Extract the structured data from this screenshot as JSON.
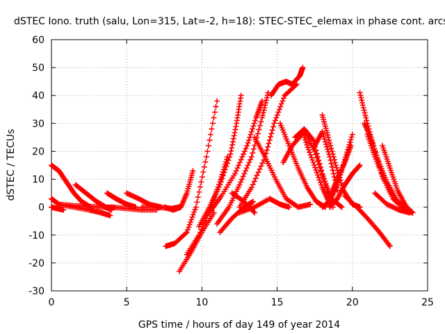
{
  "chart_data": {
    "type": "scatter",
    "title": "dSTEC Iono. truth (salu, Lon=315, Lat=-2, h=18): STEC-STEC_elemax in phase cont. arcs",
    "xlabel": "GPS time / hours of day 149 of year 2014",
    "ylabel": "dSTEC  / TECUs",
    "xlim": [
      0,
      25
    ],
    "ylim": [
      -30,
      60
    ],
    "xticks": [
      0,
      5,
      10,
      15,
      20,
      25
    ],
    "yticks": [
      -30,
      -20,
      -10,
      0,
      10,
      20,
      30,
      40,
      50,
      60
    ],
    "grid": true,
    "marker": "+",
    "color": "#ff0000",
    "series": [
      {
        "x": [
          0.0,
          0.5,
          1.0,
          1.5,
          2.0,
          2.6
        ],
        "y": [
          15.0,
          13.0,
          9.0,
          5.0,
          2.0,
          0.0
        ]
      },
      {
        "x": [
          0.0,
          0.5,
          1.5,
          2.5,
          3.3,
          3.9
        ],
        "y": [
          3.0,
          1.0,
          0.0,
          -1.0,
          -2.0,
          -3.0
        ]
      },
      {
        "x": [
          0.0,
          0.4,
          0.8
        ],
        "y": [
          0.0,
          -0.5,
          -1.0
        ]
      },
      {
        "x": [
          0.5,
          1.5,
          2.5,
          3.5,
          4.2
        ],
        "y": [
          1.0,
          0.5,
          0.2,
          0.0,
          -0.2
        ]
      },
      {
        "x": [
          1.6,
          2.3,
          3.0,
          3.6,
          4.0
        ],
        "y": [
          8.0,
          5.0,
          2.0,
          0.0,
          -1.0
        ]
      },
      {
        "x": [
          3.7,
          4.3,
          5.0,
          5.6
        ],
        "y": [
          5.0,
          3.0,
          1.0,
          0.0
        ]
      },
      {
        "x": [
          4.0,
          5.0,
          6.0,
          7.0
        ],
        "y": [
          0.0,
          -0.5,
          -1.0,
          -1.0
        ]
      },
      {
        "x": [
          5.0,
          5.8,
          6.5,
          7.3
        ],
        "y": [
          5.0,
          3.0,
          1.0,
          0.0
        ]
      },
      {
        "x": [
          6.0,
          7.0,
          8.0,
          8.5
        ],
        "y": [
          0.0,
          0.0,
          -0.5,
          0.0
        ]
      },
      {
        "x": [
          7.5,
          8.1,
          8.6,
          9.0,
          9.4
        ],
        "y": [
          0.0,
          -1.0,
          0.0,
          5.0,
          13.0
        ]
      },
      {
        "x": [
          7.6,
          8.2,
          9.0,
          9.6,
          10.3,
          11.0
        ],
        "y": [
          -14.0,
          -13.0,
          -9.0,
          0.0,
          18.0,
          38.0
        ]
      },
      {
        "x": [
          8.5,
          9.3,
          10.0,
          10.8
        ],
        "y": [
          -23.0,
          -16.0,
          -9.0,
          -2.0
        ]
      },
      {
        "x": [
          9.0,
          9.8,
          10.6,
          11.2,
          11.7
        ],
        "y": [
          -17.0,
          -10.0,
          0.0,
          9.0,
          18.0
        ]
      },
      {
        "x": [
          9.8,
          10.5,
          11.2,
          11.9,
          12.3,
          12.6
        ],
        "y": [
          -7.0,
          0.0,
          8.0,
          19.0,
          30.0,
          40.0
        ]
      },
      {
        "x": [
          10.5,
          11.3,
          12.2,
          13.0,
          13.6,
          14.0
        ],
        "y": [
          -2.0,
          4.0,
          12.0,
          22.0,
          32.0,
          38.0
        ]
      },
      {
        "x": [
          11.0,
          11.8,
          12.5,
          13.3,
          14.0,
          14.4
        ],
        "y": [
          -6.0,
          0.0,
          8.0,
          18.0,
          32.0,
          41.0
        ]
      },
      {
        "x": [
          11.2,
          12.0,
          12.8,
          13.4
        ],
        "y": [
          -9.0,
          -4.0,
          0.0,
          2.0
        ]
      },
      {
        "x": [
          12.0,
          12.8,
          13.5
        ],
        "y": [
          5.0,
          2.0,
          -2.0
        ]
      },
      {
        "x": [
          12.5,
          13.3,
          14.2,
          14.8,
          15.5,
          16.3
        ],
        "y": [
          0.0,
          7.0,
          18.0,
          30.0,
          40.0,
          44.0
        ]
      },
      {
        "x": [
          14.6,
          15.1,
          15.6,
          16.0,
          16.5,
          16.7
        ],
        "y": [
          40.0,
          44.0,
          45.0,
          44.0,
          47.0,
          50.0
        ]
      },
      {
        "x": [
          13.5,
          14.2,
          14.9,
          15.6,
          16.4,
          17.2
        ],
        "y": [
          25.0,
          18.0,
          10.0,
          3.0,
          0.0,
          1.0
        ]
      },
      {
        "x": [
          12.5,
          13.5,
          14.5,
          15.2,
          15.8
        ],
        "y": [
          -2.0,
          0.0,
          3.0,
          1.0,
          0.0
        ]
      },
      {
        "x": [
          15.2,
          15.8,
          16.4,
          17.0,
          17.6,
          18.2
        ],
        "y": [
          30.0,
          22.0,
          14.0,
          7.0,
          2.0,
          0.0
        ]
      },
      {
        "x": [
          15.4,
          16.0,
          16.8,
          17.5,
          18.2,
          18.7
        ],
        "y": [
          16.0,
          22.0,
          27.0,
          20.0,
          8.0,
          0.0
        ]
      },
      {
        "x": [
          16.2,
          16.8,
          17.4,
          18.0,
          18.6,
          19.3
        ],
        "y": [
          25.0,
          28.0,
          24.0,
          12.0,
          3.0,
          0.0
        ]
      },
      {
        "x": [
          16.8,
          17.4,
          18.0,
          18.5
        ],
        "y": [
          25.0,
          16.0,
          7.0,
          1.0
        ]
      },
      {
        "x": [
          17.5,
          18.0,
          18.5,
          19.0
        ],
        "y": [
          22.0,
          27.0,
          18.0,
          6.0
        ]
      },
      {
        "x": [
          18.0,
          18.4,
          18.9,
          19.4,
          20.0,
          20.5
        ],
        "y": [
          33.0,
          25.0,
          15.0,
          6.0,
          1.0,
          0.0
        ]
      },
      {
        "x": [
          18.0,
          18.5,
          19.0,
          19.5,
          20.0
        ],
        "y": [
          0.0,
          2.0,
          8.0,
          17.0,
          26.0
        ]
      },
      {
        "x": [
          18.5,
          19.0,
          19.5,
          20.0,
          20.5
        ],
        "y": [
          0.0,
          3.0,
          8.0,
          12.0,
          15.0
        ]
      },
      {
        "x": [
          18.5,
          19.0,
          19.5,
          19.9
        ],
        "y": [
          4.0,
          10.0,
          16.0,
          22.0
        ]
      },
      {
        "x": [
          19.5,
          20.3,
          21.0,
          21.8,
          22.5
        ],
        "y": [
          4.0,
          0.0,
          -4.0,
          -9.0,
          -14.0
        ]
      },
      {
        "x": [
          20.5,
          20.9,
          21.4,
          22.0,
          22.7,
          23.5,
          24.0
        ],
        "y": [
          41.0,
          32.0,
          22.0,
          11.0,
          3.0,
          -1.0,
          -2.0
        ]
      },
      {
        "x": [
          20.8,
          21.2,
          21.7,
          22.3,
          23.0,
          23.7
        ],
        "y": [
          30.0,
          25.0,
          17.0,
          9.0,
          2.0,
          -1.0
        ]
      },
      {
        "x": [
          21.0,
          21.5,
          22.1,
          22.8,
          23.5
        ],
        "y": [
          26.0,
          18.0,
          10.0,
          3.0,
          0.0
        ]
      },
      {
        "x": [
          22.0,
          22.5,
          23.0,
          23.6,
          24.0
        ],
        "y": [
          22.0,
          14.0,
          6.0,
          0.0,
          -2.0
        ]
      },
      {
        "x": [
          21.5,
          22.3,
          23.1,
          23.8
        ],
        "y": [
          5.0,
          1.0,
          -1.0,
          -2.0
        ]
      }
    ]
  }
}
